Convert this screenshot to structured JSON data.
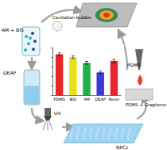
{
  "labels": {
    "cavitation": "Cavitation bubble",
    "monomers": "AM + BIS",
    "initiator": "DEAP",
    "light": "UV",
    "product": "NPCs",
    "polymer": "PDMS",
    "composite": "PDMS + Graphene"
  },
  "chart_data": {
    "type": "bar",
    "categories": [
      "PDMS",
      "BIS",
      "AM",
      "DEAP",
      "Resin"
    ],
    "values": [
      0.86,
      0.8,
      0.68,
      0.48,
      0.72
    ],
    "errors": [
      0.03,
      0.03,
      0.03,
      0.03,
      0.04
    ],
    "colors": [
      "#e8262b",
      "#e8e21a",
      "#22b04a",
      "#3a3ad6",
      "#e8262b"
    ],
    "ylim": [
      0,
      1
    ],
    "yticks": [
      0,
      0.2,
      0.4,
      0.6,
      0.8,
      1
    ],
    "tick_labels": "x",
    "grid": false
  }
}
